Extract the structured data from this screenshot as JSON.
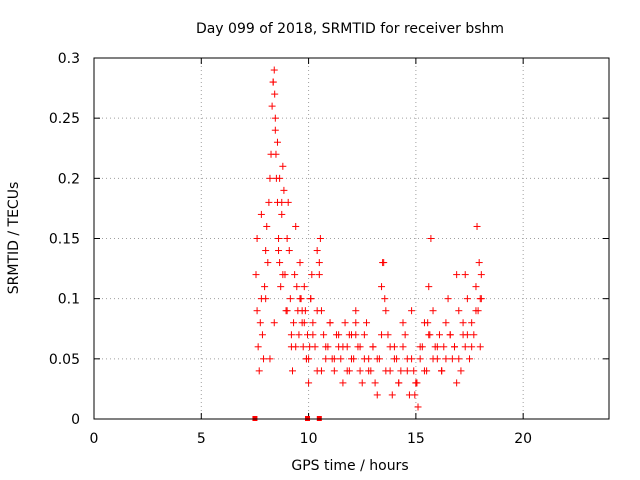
{
  "chart_data": {
    "type": "scatter",
    "title": "Day 099 of 2018, SRMTID for receiver bshm",
    "xlabel": "GPS time / hours",
    "ylabel": "SRMTID / TECUs",
    "xlim": [
      0,
      24
    ],
    "ylim": [
      0,
      0.3
    ],
    "xticks": [
      0,
      5,
      10,
      15,
      20
    ],
    "xtick_labels": [
      "0",
      "5",
      "10",
      "15",
      "20"
    ],
    "yticks": [
      0,
      0.05,
      0.1,
      0.15,
      0.2,
      0.25,
      0.3
    ],
    "ytick_labels": [
      "0",
      "0.05",
      "0.1",
      "0.15",
      "0.2",
      "0.25",
      "0.3"
    ],
    "grid": true,
    "marker": "plus",
    "color": "#ff0000",
    "series": [
      {
        "name": "SRMTID",
        "x": [
          7.55,
          7.6,
          7.65,
          7.7,
          7.75,
          7.8,
          7.85,
          7.9,
          7.95,
          8.0,
          8.05,
          8.1,
          8.15,
          8.2,
          8.25,
          8.3,
          8.35,
          8.4,
          8.42,
          8.45,
          8.48,
          8.5,
          8.55,
          8.6,
          8.65,
          8.7,
          8.75,
          8.8,
          8.85,
          8.9,
          8.95,
          9.0,
          9.05,
          9.1,
          9.15,
          9.2,
          9.25,
          9.3,
          9.35,
          9.4,
          9.45,
          9.5,
          9.55,
          9.6,
          9.65,
          9.7,
          9.75,
          9.8,
          9.85,
          9.9,
          9.95,
          10.0,
          10.05,
          10.1,
          10.15,
          10.2,
          10.3,
          10.4,
          10.5,
          10.55,
          10.6,
          10.7,
          10.8,
          10.9,
          11.0,
          11.1,
          11.2,
          11.3,
          11.4,
          11.5,
          11.6,
          11.7,
          11.8,
          11.9,
          12.0,
          12.1,
          12.2,
          12.3,
          12.4,
          12.5,
          12.6,
          12.7,
          12.8,
          12.9,
          13.0,
          13.1,
          13.2,
          13.3,
          13.4,
          13.5,
          13.6,
          13.7,
          13.8,
          13.9,
          14.0,
          14.1,
          14.2,
          14.3,
          14.4,
          14.5,
          14.6,
          14.7,
          14.8,
          14.9,
          15.0,
          15.1,
          15.2,
          15.3,
          15.4,
          15.5,
          15.6,
          15.7,
          15.8,
          15.9,
          16.0,
          16.1,
          16.2,
          16.3,
          16.4,
          16.5,
          16.6,
          16.7,
          16.8,
          16.9,
          17.0,
          17.1,
          17.2,
          17.3,
          17.4,
          17.5,
          17.6,
          17.7,
          17.8,
          17.9,
          18.0,
          18.05,
          7.6,
          7.8,
          8.0,
          8.2,
          8.4,
          8.6,
          8.8,
          9.0,
          9.2,
          9.4,
          9.6,
          9.8,
          10.0,
          10.2,
          10.4,
          10.6,
          10.8,
          11.0,
          11.2,
          11.4,
          11.6,
          11.8,
          12.0,
          12.2,
          12.4,
          12.6,
          12.8,
          13.0,
          13.2,
          13.4,
          13.6,
          13.8,
          14.0,
          14.2,
          14.4,
          14.6,
          14.8,
          15.0,
          15.2,
          15.4,
          15.6,
          15.8,
          16.0,
          16.2,
          16.4,
          16.6,
          16.8,
          17.0,
          17.2,
          17.4,
          17.6,
          17.8,
          18.0,
          8.35,
          8.45,
          8.55,
          8.65,
          8.75,
          9.7,
          9.9,
          10.1,
          10.4,
          10.5,
          13.45,
          13.55,
          14.95,
          15.05,
          15.55,
          15.65,
          17.85,
          17.95,
          18.05,
          16.2,
          16.9,
          17.3,
          12.2,
          11.9
        ],
        "y": [
          0.12,
          0.09,
          0.06,
          0.04,
          0.08,
          0.1,
          0.07,
          0.05,
          0.11,
          0.14,
          0.16,
          0.13,
          0.18,
          0.2,
          0.22,
          0.26,
          0.28,
          0.29,
          0.27,
          0.24,
          0.22,
          0.2,
          0.18,
          0.15,
          0.13,
          0.11,
          0.17,
          0.21,
          0.19,
          0.12,
          0.09,
          0.15,
          0.18,
          0.14,
          0.1,
          0.06,
          0.04,
          0.08,
          0.12,
          0.16,
          0.11,
          0.09,
          0.07,
          0.13,
          0.1,
          0.08,
          0.06,
          0.11,
          0.09,
          0.05,
          0.07,
          0.03,
          0.06,
          0.1,
          0.12,
          0.08,
          0.06,
          0.04,
          0.13,
          0.15,
          0.09,
          0.07,
          0.05,
          0.06,
          0.08,
          0.05,
          0.04,
          0.07,
          0.06,
          0.05,
          0.03,
          0.08,
          0.06,
          0.04,
          0.07,
          0.05,
          0.09,
          0.06,
          0.04,
          0.03,
          0.07,
          0.08,
          0.05,
          0.04,
          0.06,
          0.03,
          0.02,
          0.05,
          0.11,
          0.13,
          0.09,
          0.07,
          0.04,
          0.02,
          0.06,
          0.05,
          0.03,
          0.04,
          0.08,
          0.07,
          0.05,
          0.02,
          0.09,
          0.04,
          0.03,
          0.01,
          0.05,
          0.06,
          0.08,
          0.04,
          0.11,
          0.15,
          0.09,
          0.06,
          0.05,
          0.07,
          0.04,
          0.06,
          0.08,
          0.1,
          0.07,
          0.05,
          0.06,
          0.12,
          0.09,
          0.04,
          0.07,
          0.06,
          0.1,
          0.05,
          0.08,
          0.07,
          0.11,
          0.09,
          0.06,
          0.12,
          0.15,
          0.17,
          0.1,
          0.05,
          0.08,
          0.14,
          0.12,
          0.09,
          0.07,
          0.06,
          0.1,
          0.08,
          0.05,
          0.07,
          0.09,
          0.04,
          0.06,
          0.08,
          0.05,
          0.07,
          0.06,
          0.04,
          0.05,
          0.07,
          0.06,
          0.05,
          0.04,
          0.06,
          0.05,
          0.07,
          0.04,
          0.06,
          0.05,
          0.03,
          0.06,
          0.04,
          0.05,
          0.03,
          0.06,
          0.04,
          0.07,
          0.05,
          0.06,
          0.04,
          0.05,
          0.07,
          0.06,
          0.05,
          0.08,
          0.07,
          0.06,
          0.09,
          0.1,
          0.28,
          0.25,
          0.23,
          0.2,
          0.18,
          0.09,
          0.05,
          0.1,
          0.14,
          0.12,
          0.13,
          0.1,
          0.02,
          0.03,
          0.08,
          0.07,
          0.16,
          0.13,
          0.1,
          0.04,
          0.03,
          0.12,
          0.08,
          0.07
        ],
        "zero_markers_x": [
          7.5,
          9.95,
          10.5
        ]
      }
    ]
  }
}
